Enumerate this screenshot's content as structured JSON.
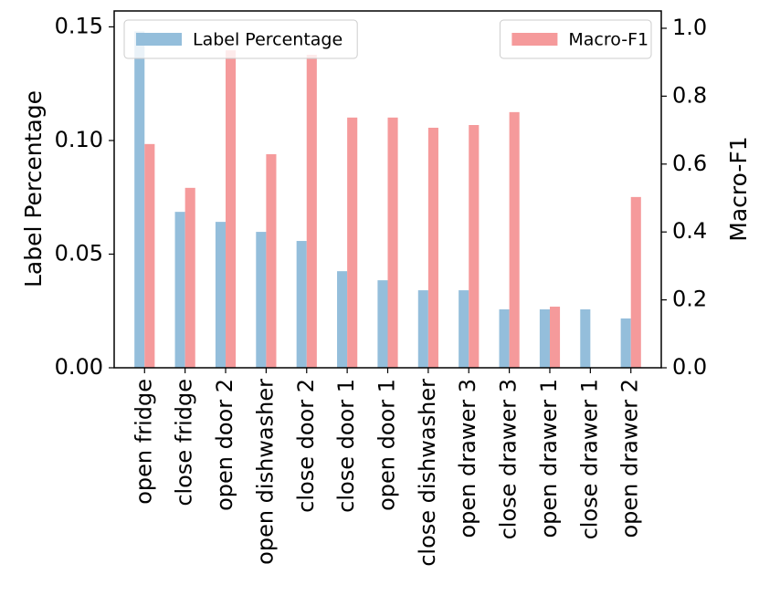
{
  "chart_data": {
    "type": "bar",
    "categories": [
      "open fridge",
      "close fridge",
      "open door 2",
      "open dishwasher",
      "close door 2",
      "close door 1",
      "open door 1",
      "close dishwasher",
      "open drawer 3",
      "close drawer 3",
      "open drawer 1",
      "close drawer 1",
      "open drawer 2"
    ],
    "ylabel": "Label Percentage",
    "y2label": "Macro-F1",
    "ylim": [
      0,
      0.157
    ],
    "yticks": [
      {
        "value": 0,
        "label": "0.00"
      },
      {
        "value": 0.05,
        "label": "0.05"
      },
      {
        "value": 0.1,
        "label": "0.10"
      },
      {
        "value": 0.15,
        "label": "0.15"
      }
    ],
    "y2lim": [
      0,
      1.051
    ],
    "y2ticks": [
      {
        "value": 0,
        "label": "0.0"
      },
      {
        "value": 0.2,
        "label": "0.2"
      },
      {
        "value": 0.4,
        "label": "0.4"
      },
      {
        "value": 0.6,
        "label": "0.6"
      },
      {
        "value": 0.8,
        "label": "0.8"
      },
      {
        "value": 1.0,
        "label": "1.0"
      }
    ],
    "series": [
      {
        "name": "Label Percentage",
        "color": "#94bedb",
        "legend": "upper left",
        "values": [
          0.148,
          0.0686,
          0.0642,
          0.0598,
          0.0558,
          0.0425,
          0.0385,
          0.0341,
          0.0341,
          0.0257,
          0.0257,
          0.0257,
          0.0217
        ]
      },
      {
        "name": "Macro-F1",
        "color": "#f59a9b",
        "axis": "y2",
        "legend": "upper right",
        "values": [
          0.659,
          0.53,
          0.935,
          0.629,
          0.922,
          0.737,
          0.737,
          0.707,
          0.715,
          0.753,
          0.18,
          0,
          0.503
        ]
      }
    ]
  }
}
